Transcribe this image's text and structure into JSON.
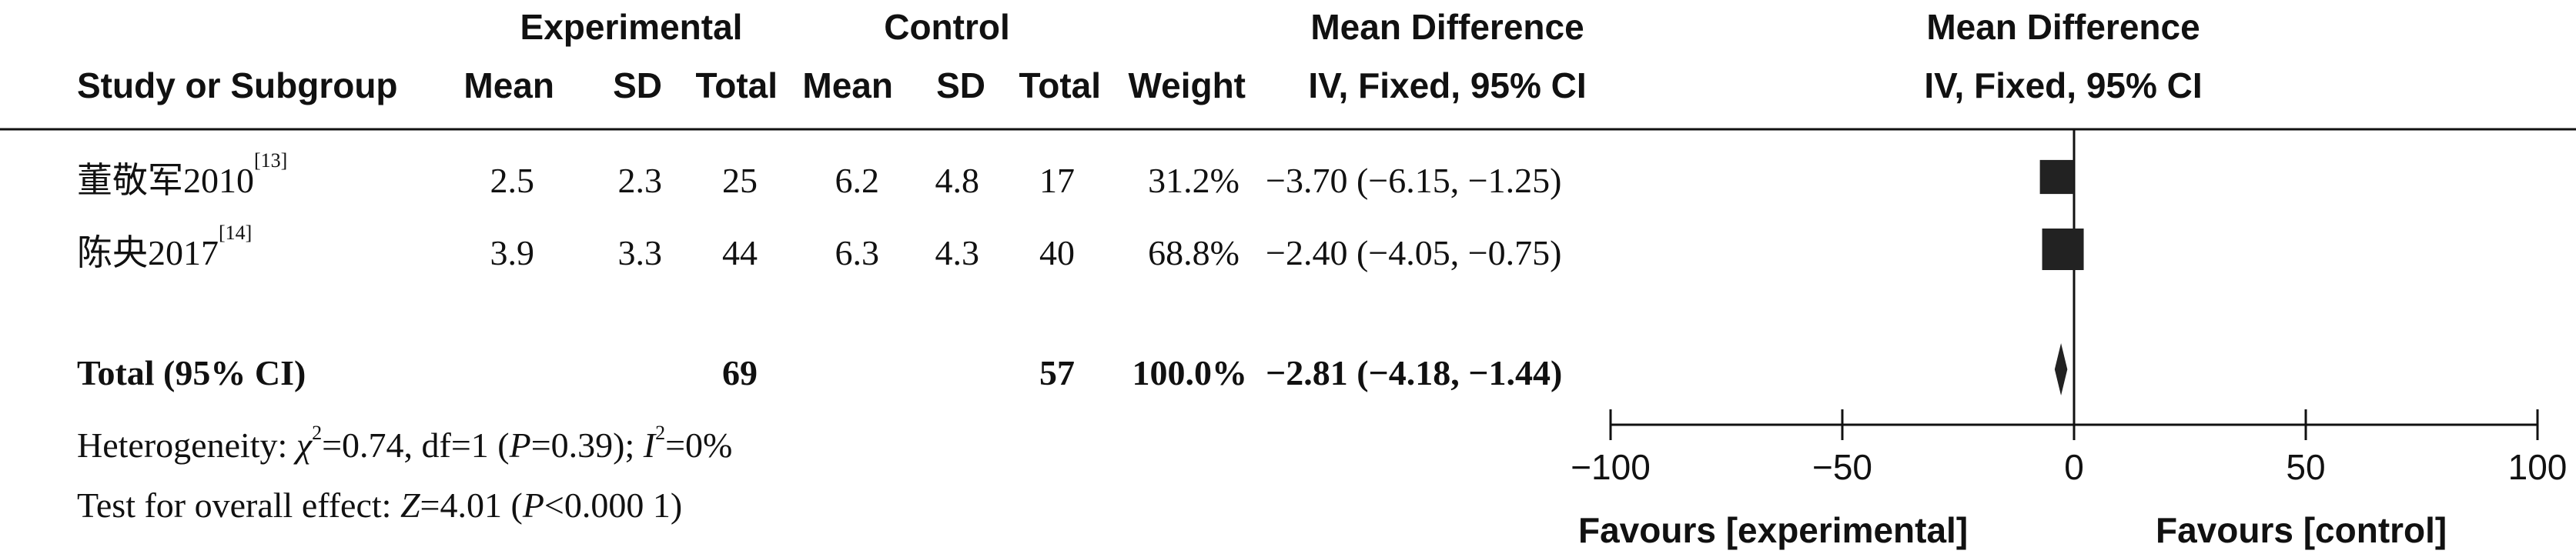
{
  "chart_data": {
    "type": "forest",
    "header": {
      "group_experimental": "Experimental",
      "group_control": "Control",
      "col_study": "Study or Subgroup",
      "col_mean": "Mean",
      "col_sd": "SD",
      "col_total": "Total",
      "col_weight": "Weight",
      "col_md_title": "Mean Difference",
      "col_md_method": "IV, Fixed, 95% CI",
      "plot_title": "Mean Difference",
      "plot_method": "IV, Fixed, 95% CI"
    },
    "studies": [
      {
        "name": "董敬军2010",
        "ref": "[13]",
        "e_mean": "2.5",
        "e_sd": "2.3",
        "e_total": "25",
        "c_mean": "6.2",
        "c_sd": "4.8",
        "c_total": "17",
        "weight": "31.2%",
        "ci_text": "−3.70 (−6.15, −1.25)",
        "md": -3.7,
        "lo": -6.15,
        "hi": -1.25,
        "w": 31.2
      },
      {
        "name": "陈央2017",
        "ref": "[14]",
        "e_mean": "3.9",
        "e_sd": "3.3",
        "e_total": "44",
        "c_mean": "6.3",
        "c_sd": "4.3",
        "c_total": "40",
        "weight": "68.8%",
        "ci_text": "−2.40 (−4.05, −0.75)",
        "md": -2.4,
        "lo": -4.05,
        "hi": -0.75,
        "w": 68.8
      }
    ],
    "total": {
      "label": "Total (95% CI)",
      "e_total": "69",
      "c_total": "57",
      "weight": "100.0%",
      "ci_text": "−2.81 (−4.18, −1.44)",
      "md": -2.81,
      "lo": -4.18,
      "hi": -1.44
    },
    "heterogeneity": {
      "prefix": "Heterogeneity: ",
      "chi": "χ",
      "chi_sup": "2",
      "chi_rest": "=0.74, df=1 (",
      "p": "P",
      "p_rest": "=0.39); ",
      "i": "I",
      "i_sup": "2",
      "i_rest": "=0%"
    },
    "overall": {
      "prefix": "Test for overall effect: ",
      "z": "Z",
      "z_rest": "=4.01 (",
      "p": "P",
      "p_rest": "<0.000 1)"
    },
    "x_axis": {
      "ticks": [
        -100,
        -50,
        0,
        50,
        100
      ],
      "tick_labels": [
        "−100",
        "−50",
        "0",
        "50",
        "100"
      ],
      "xlim": [
        -100,
        100
      ]
    },
    "favours_left": "Favours [experimental]",
    "favours_right": "Favours [control]"
  }
}
